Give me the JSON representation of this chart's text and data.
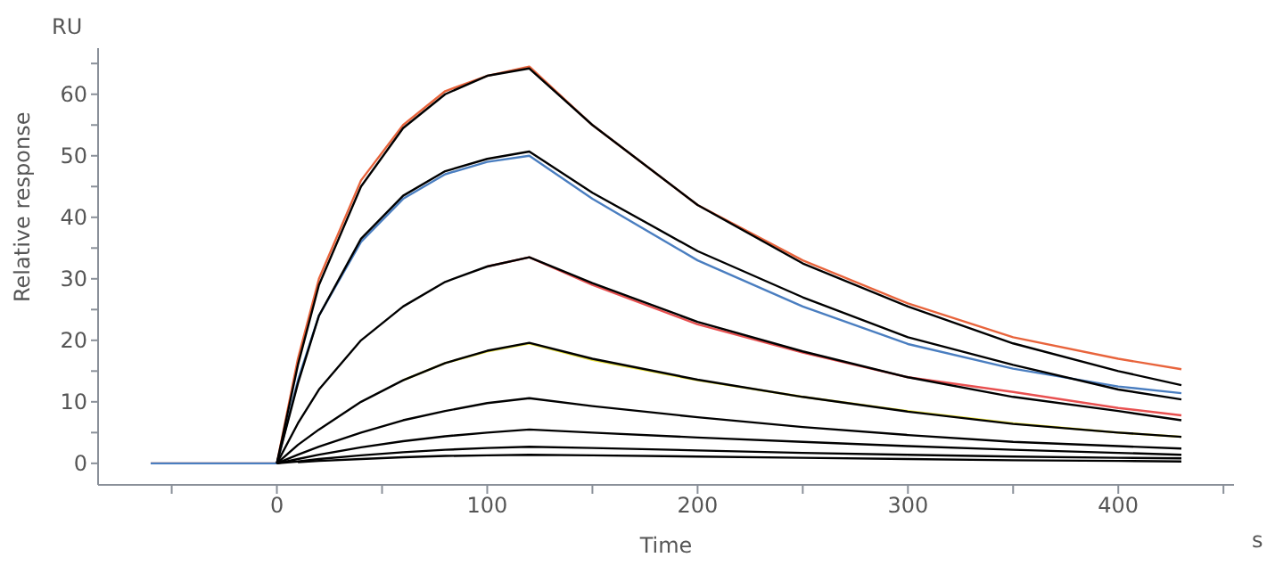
{
  "chart_data": {
    "type": "line",
    "xlabel": "Time",
    "ylabel": "Relative response",
    "annotations": [
      "RU",
      "s"
    ],
    "x": [
      -60,
      0,
      10,
      20,
      40,
      60,
      80,
      100,
      120,
      150,
      200,
      250,
      300,
      350,
      400,
      430
    ],
    "xlim": [
      -85,
      455
    ],
    "xticks": [
      {
        "value": -50,
        "label": null
      },
      0,
      {
        "value": 50,
        "label": null
      },
      100,
      {
        "value": 150,
        "label": null
      },
      200,
      {
        "value": 250,
        "label": null
      },
      300,
      {
        "value": 350,
        "label": null
      },
      400,
      {
        "value": 450,
        "label": null
      }
    ],
    "ylim": [
      -3.5,
      67.5
    ],
    "yticks": [
      0,
      {
        "value": 5,
        "label": null
      },
      10,
      {
        "value": 15,
        "label": null
      },
      20,
      {
        "value": 25,
        "label": null
      },
      30,
      {
        "value": 35,
        "label": null
      },
      40,
      {
        "value": 45,
        "label": null
      },
      50,
      {
        "value": 55,
        "label": null
      },
      60,
      {
        "value": 65,
        "label": null
      }
    ],
    "line_style": "solid",
    "series": [
      {
        "color": "#e8643c",
        "values": [
          0,
          0,
          17,
          30,
          46,
          55,
          60.5,
          63,
          64.5,
          55,
          42,
          33,
          26,
          20.5,
          17,
          15.3
        ]
      },
      {
        "color": "#4a7ec0",
        "values": [
          0,
          0,
          13.5,
          24,
          36,
          43,
          47,
          49,
          50,
          43,
          33,
          25.5,
          19.4,
          15.4,
          12.5,
          11.4
        ]
      },
      {
        "color": "#e85050",
        "values": [
          null,
          null,
          null,
          null,
          null,
          null,
          null,
          32,
          33.5,
          29,
          22.6,
          18,
          14,
          11.6,
          9,
          7.8
        ]
      },
      {
        "color": "#e8e040",
        "values": [
          null,
          null,
          null,
          null,
          null,
          13.5,
          16.3,
          18.2,
          19.5,
          16.8,
          13.5,
          10.8,
          8.5,
          6.5,
          5,
          4.3
        ]
      },
      {
        "color": "#000000",
        "values": [
          null,
          0,
          16,
          29,
          45,
          54.5,
          60,
          63,
          64.2,
          55,
          42,
          32.5,
          25.5,
          19.5,
          15,
          12.7
        ]
      },
      {
        "color": "#000000",
        "values": [
          null,
          0,
          13,
          24,
          36.5,
          43.5,
          47.5,
          49.5,
          50.7,
          44,
          34.5,
          27,
          20.5,
          16,
          12,
          10.4
        ]
      },
      {
        "color": "#000000",
        "values": [
          null,
          0,
          6.5,
          12,
          20,
          25.5,
          29.5,
          32,
          33.5,
          29.3,
          23,
          18.2,
          14,
          10.8,
          8.5,
          7
        ]
      },
      {
        "color": "#000000",
        "values": [
          null,
          0,
          3,
          5.5,
          10,
          13.5,
          16.3,
          18.3,
          19.6,
          17,
          13.6,
          10.8,
          8.4,
          6.4,
          5,
          4.3
        ]
      },
      {
        "color": "#000000",
        "values": [
          null,
          0,
          1.4,
          2.7,
          5,
          7,
          8.5,
          9.8,
          10.6,
          9.3,
          7.5,
          5.9,
          4.6,
          3.5,
          2.8,
          2.4
        ]
      },
      {
        "color": "#000000",
        "values": [
          null,
          0,
          0.7,
          1.4,
          2.6,
          3.6,
          4.4,
          5,
          5.5,
          5,
          4.2,
          3.5,
          2.8,
          2.2,
          1.7,
          1.4
        ]
      },
      {
        "color": "#000000",
        "values": [
          null,
          0,
          0.3,
          0.7,
          1.3,
          1.8,
          2.2,
          2.5,
          2.7,
          2.5,
          2.1,
          1.7,
          1.4,
          1.1,
          0.9,
          0.8
        ]
      },
      {
        "color": "#000000",
        "values": [
          null,
          null,
          0.2,
          0.4,
          0.7,
          1,
          1.2,
          1.3,
          1.4,
          1.3,
          1.1,
          0.9,
          0.7,
          0.5,
          0.4,
          0.3
        ]
      }
    ]
  }
}
